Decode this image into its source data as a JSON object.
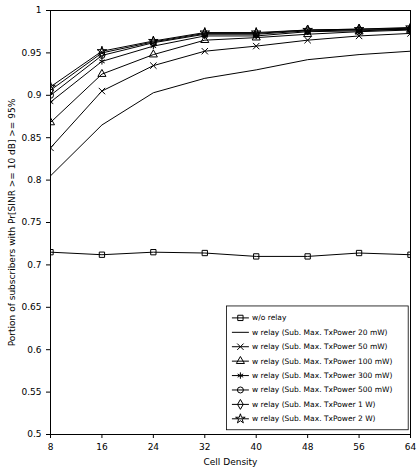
{
  "chart_data": {
    "type": "line",
    "x_label": "Cell Density",
    "y_label": "Portion of subscribers with Pr[SINR >= 10 dB] >= 95%",
    "x": [
      8,
      16,
      24,
      32,
      40,
      48,
      56,
      64
    ],
    "xlim": [
      8,
      64
    ],
    "xticks": [
      8,
      16,
      24,
      32,
      40,
      48,
      56,
      64
    ],
    "ylim": [
      0.5,
      1
    ],
    "yticks": [
      0.5,
      0.55,
      0.6,
      0.65,
      0.7,
      0.75,
      0.8,
      0.85,
      0.9,
      0.95,
      1
    ],
    "grid": false,
    "legend": "lower right",
    "series": [
      {
        "name": "w/o relay",
        "color": "#000000",
        "marker": "square",
        "line_style": "solid",
        "values": [
          0.715,
          0.712,
          0.715,
          0.714,
          0.71,
          0.71,
          0.714,
          0.712
        ]
      },
      {
        "name": "w relay (Sub. Max. TxPower 20 mW)",
        "color": "#000000",
        "marker": "none",
        "line_style": "solid",
        "values": [
          0.805,
          0.865,
          0.903,
          0.92,
          0.93,
          0.942,
          0.948,
          0.952
        ]
      },
      {
        "name": "w relay (Sub. Max. TxPower 50 mW)",
        "color": "#000000",
        "marker": "times",
        "line_style": "solid",
        "values": [
          0.838,
          0.905,
          0.935,
          0.952,
          0.958,
          0.965,
          0.97,
          0.973
        ]
      },
      {
        "name": "w relay (Sub. Max. TxPower 100 mW)",
        "color": "#000000",
        "marker": "triangle",
        "line_style": "solid",
        "values": [
          0.868,
          0.925,
          0.948,
          0.965,
          0.968,
          0.972,
          0.975,
          0.977
        ]
      },
      {
        "name": "w relay (Sub. Max. TxPower 300 mW)",
        "color": "#000000",
        "marker": "asterisk",
        "line_style": "solid",
        "values": [
          0.892,
          0.94,
          0.958,
          0.97,
          0.97,
          0.975,
          0.976,
          0.978
        ]
      },
      {
        "name": "w relay (Sub. Max. TxPower 500 mW)",
        "color": "#000000",
        "marker": "circle",
        "line_style": "solid",
        "values": [
          0.9,
          0.947,
          0.962,
          0.972,
          0.972,
          0.976,
          0.977,
          0.978
        ]
      },
      {
        "name": "w relay (Sub. Max. TxPower 1 W)",
        "color": "#000000",
        "marker": "diamond",
        "line_style": "solid",
        "values": [
          0.906,
          0.95,
          0.963,
          0.973,
          0.973,
          0.977,
          0.978,
          0.979
        ]
      },
      {
        "name": "w relay (Sub. Max. TxPower 2 W)",
        "color": "#000000",
        "marker": "star",
        "line_style": "solid",
        "values": [
          0.91,
          0.952,
          0.964,
          0.974,
          0.974,
          0.977,
          0.978,
          0.98
        ]
      }
    ]
  }
}
